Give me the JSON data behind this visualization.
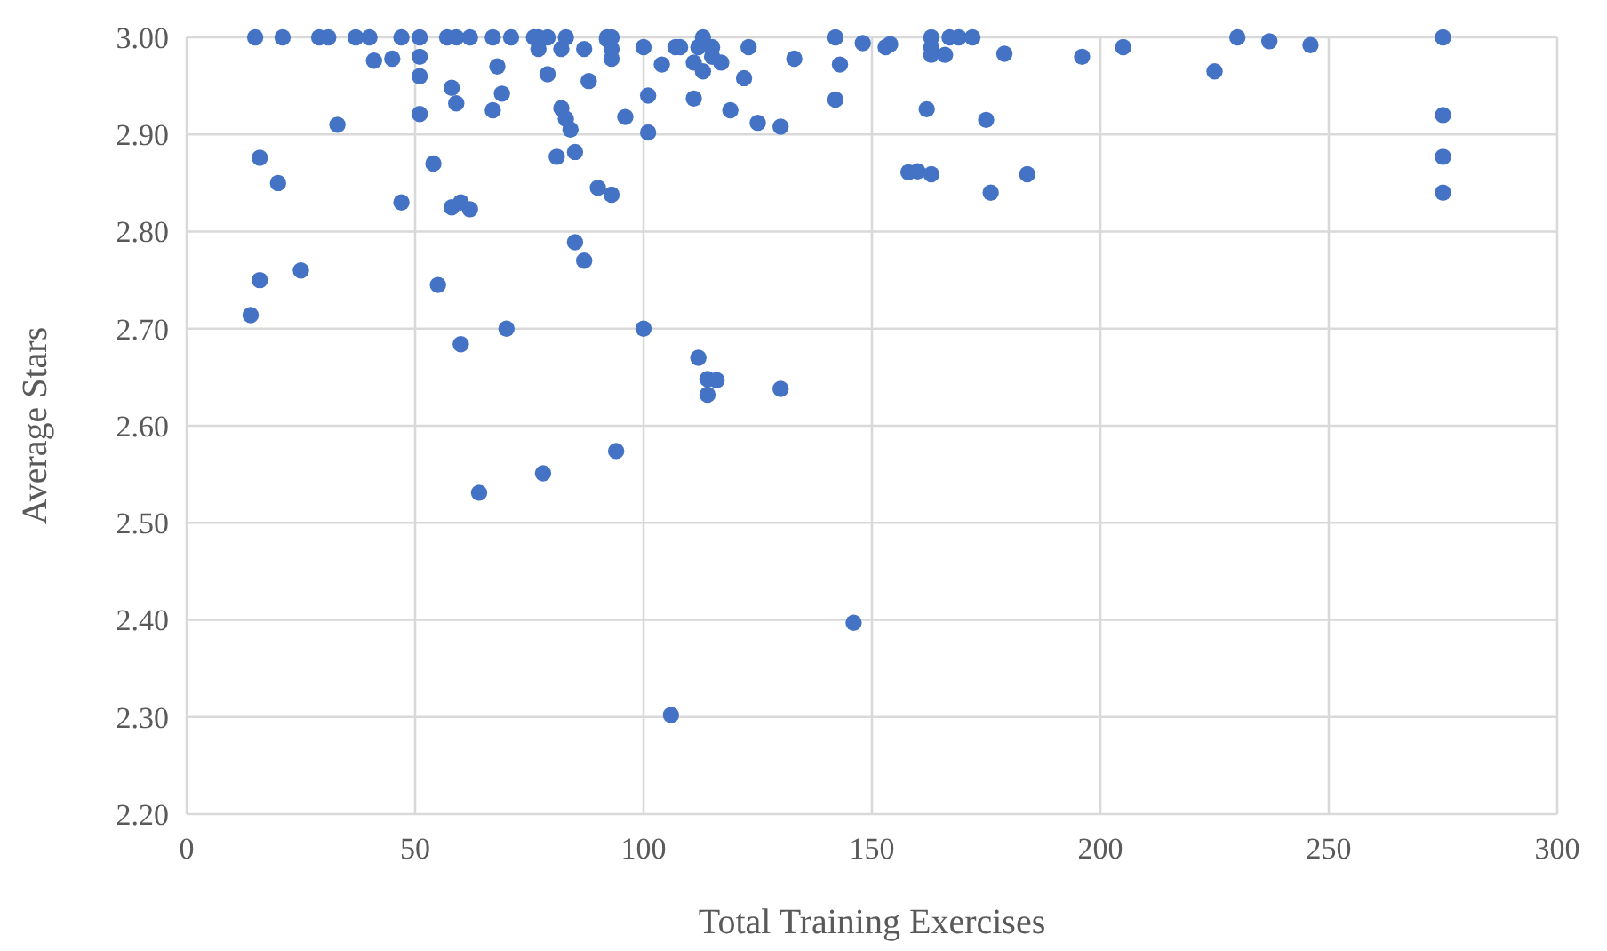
{
  "chart_data": {
    "type": "scatter",
    "xlabel": "Total Training Exercises",
    "ylabel": "Average Stars",
    "xlim": [
      0,
      300
    ],
    "xticks": [
      0,
      50,
      100,
      150,
      200,
      250,
      300
    ],
    "ylim": [
      2.2,
      3.0
    ],
    "yticks": [
      {
        "value": 2.2,
        "label": "2.20"
      },
      {
        "value": 2.3,
        "label": "2.30"
      },
      {
        "value": 2.4,
        "label": "2.40"
      },
      {
        "value": 2.5,
        "label": "2.50"
      },
      {
        "value": 2.6,
        "label": "2.60"
      },
      {
        "value": 2.7,
        "label": "2.70"
      },
      {
        "value": 2.8,
        "label": "2.80"
      },
      {
        "value": 2.9,
        "label": "2.90"
      },
      {
        "value": 3.0,
        "label": "3.00"
      }
    ],
    "grid": true,
    "marker": "circle",
    "series": [
      {
        "color": "#4472c4",
        "x": [
          15,
          29,
          31,
          37,
          40,
          47,
          51,
          57,
          59,
          62,
          67,
          71,
          76,
          77,
          79,
          83,
          92,
          93,
          113,
          142,
          163,
          167,
          169,
          172,
          230,
          275,
          14,
          16,
          16,
          20,
          21,
          25,
          33,
          41,
          45,
          47,
          51,
          51,
          51,
          54,
          55,
          58,
          58,
          59,
          60,
          60,
          62,
          64,
          67,
          68,
          69,
          70,
          77,
          78,
          79,
          81,
          82,
          82,
          83,
          84,
          85,
          85,
          87,
          87,
          88,
          90,
          92,
          93,
          93,
          93,
          94,
          96,
          100,
          100,
          101,
          101,
          104,
          106,
          107,
          108,
          111,
          111,
          112,
          112,
          113,
          114,
          114,
          115,
          115,
          116,
          117,
          119,
          122,
          123,
          125,
          130,
          130,
          133,
          142,
          143,
          146,
          148,
          153,
          154,
          158,
          160,
          162,
          163,
          163,
          163,
          166,
          175,
          176,
          179,
          184,
          196,
          205,
          225,
          237,
          246,
          275,
          275,
          275
        ],
        "values": [
          3.0,
          3.0,
          3.0,
          3.0,
          3.0,
          3.0,
          3.0,
          3.0,
          3.0,
          3.0,
          3.0,
          3.0,
          3.0,
          3.0,
          3.0,
          3.0,
          3.0,
          3.0,
          3.0,
          3.0,
          3.0,
          3.0,
          3.0,
          3.0,
          3.0,
          3.0,
          2.714,
          2.876,
          2.75,
          2.85,
          3.0,
          2.76,
          2.91,
          2.976,
          2.978,
          2.83,
          2.96,
          2.98,
          2.921,
          2.87,
          2.745,
          2.825,
          2.948,
          2.932,
          2.83,
          2.684,
          2.823,
          2.531,
          2.925,
          2.97,
          2.942,
          2.7,
          2.988,
          2.551,
          2.962,
          2.877,
          2.927,
          2.988,
          2.916,
          2.905,
          2.882,
          2.789,
          2.77,
          2.988,
          2.955,
          2.845,
          2.998,
          2.988,
          2.978,
          2.838,
          2.574,
          2.918,
          2.99,
          2.7,
          2.94,
          2.902,
          2.972,
          2.302,
          2.99,
          2.99,
          2.974,
          2.937,
          2.67,
          2.99,
          2.965,
          2.648,
          2.632,
          2.99,
          2.98,
          2.647,
          2.974,
          2.925,
          2.958,
          2.99,
          2.912,
          2.908,
          2.638,
          2.978,
          2.936,
          2.972,
          2.397,
          2.994,
          2.99,
          2.993,
          2.861,
          2.862,
          2.926,
          2.99,
          2.982,
          2.859,
          2.982,
          2.915,
          2.84,
          2.983,
          2.859,
          2.98,
          2.99,
          2.965,
          2.996,
          2.992,
          2.92,
          2.877,
          2.84
        ]
      }
    ]
  }
}
